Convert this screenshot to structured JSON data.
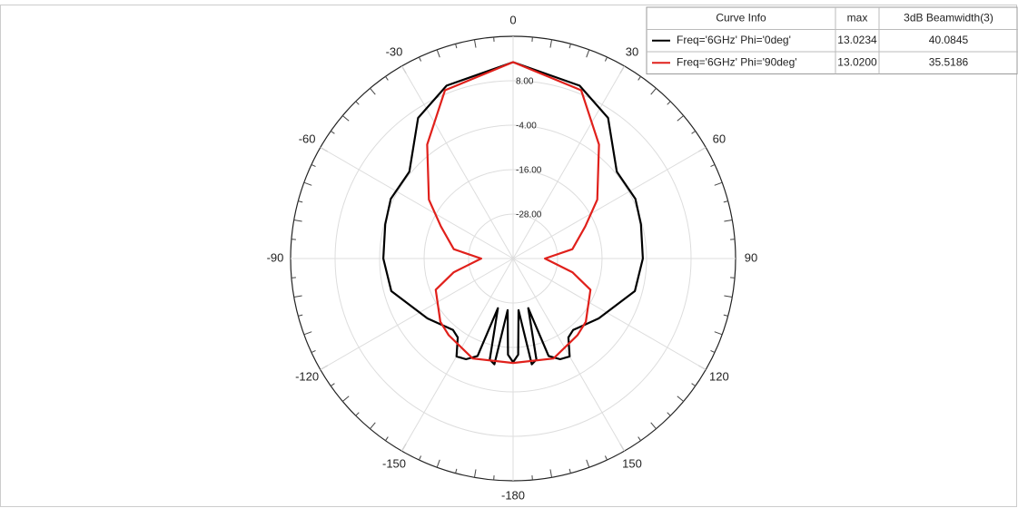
{
  "chart_data": {
    "type": "polar",
    "rlim": [
      -40,
      20
    ],
    "rticks": [
      {
        "value": -28,
        "label": "-28.00"
      },
      {
        "value": -16,
        "label": "-16.00"
      },
      {
        "value": -4,
        "label": "-4.00"
      },
      {
        "value": 8,
        "label": "8.00"
      }
    ],
    "thetaticks": [
      0,
      30,
      60,
      90,
      120,
      150,
      -180,
      -150,
      -120,
      -90,
      -60,
      -30
    ],
    "grid": true,
    "series": [
      {
        "name": "Freq='6GHz' Phi='0deg'",
        "color": "#000000",
        "theta": [
          -180,
          -177,
          -174,
          -170,
          -167,
          -163,
          -160,
          -155,
          -150,
          -145,
          -140,
          -125,
          -105,
          -90,
          -75,
          -64,
          -50,
          -34,
          -21,
          0,
          21,
          34,
          50,
          64,
          75,
          90,
          105,
          125,
          140,
          145,
          150,
          155,
          160,
          163,
          167,
          170,
          174,
          177,
          180
        ],
        "values": [
          -12,
          -14,
          -26,
          -11,
          -12,
          -26,
          -12,
          -10,
          -9.5,
          -14,
          -14.8,
          -11.8,
          -6,
          -5,
          -4.3,
          -3.3,
          -3.5,
          5.8,
          10,
          13.02,
          10,
          5.8,
          -3.5,
          -3.3,
          -4.3,
          -5,
          -6,
          -11.8,
          -14.8,
          -14,
          -9.5,
          -10,
          -12,
          -26,
          -12,
          -11,
          -26,
          -14,
          -12
        ]
      },
      {
        "name": "Freq='6GHz' Phi='90deg'",
        "color": "#e0201b",
        "theta": [
          -180,
          -158,
          -140,
          -131,
          -112,
          -103,
          -90,
          -81,
          -66,
          -55,
          -37,
          -22,
          0,
          22,
          37,
          55,
          66,
          81,
          90,
          103,
          112,
          131,
          140,
          158,
          180
        ],
        "values": [
          -11.8,
          -10.9,
          -13,
          -14,
          -17.5,
          -23.6,
          -31.4,
          -23.8,
          -18.7,
          -12.3,
          -1.5,
          9,
          13.02,
          9,
          -1.5,
          -12.3,
          -18.7,
          -23.8,
          -31.4,
          -23.6,
          -17.5,
          -14,
          -13,
          -10.9,
          -11.8
        ]
      }
    ],
    "legend_table": {
      "columns": [
        "Curve Info",
        "max",
        "3dB Beamwidth(3)"
      ],
      "rows": [
        [
          "13.0234",
          "40.0845"
        ],
        [
          "13.0200",
          "35.5186"
        ]
      ]
    }
  }
}
